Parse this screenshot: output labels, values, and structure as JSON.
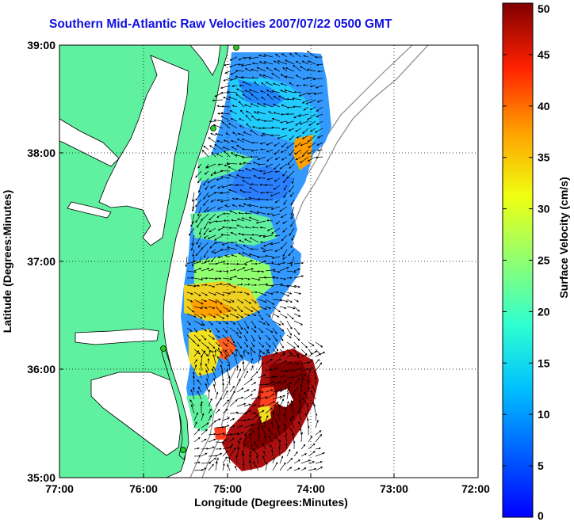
{
  "title": "Southern Mid-Atlantic Raw Velocities 2007/07/22 0500 GMT",
  "map": {
    "xlabel": "Longitude (Degrees:Minutes)",
    "ylabel": "Latitude (Degrees:Minutes)",
    "lon_ticks": [
      "77:00",
      "76:00",
      "75:00",
      "74:00",
      "73:00",
      "72:00"
    ],
    "lat_ticks": [
      "39:00",
      "38:00",
      "37:00",
      "36:00",
      "35:00"
    ],
    "lon_range": [
      -77,
      -72
    ],
    "lat_range": [
      35,
      39
    ],
    "colors": {
      "land": "#5ff0a0",
      "coast": "#000000",
      "contour": "#888888",
      "grid": "#000000",
      "station": "#22cc22",
      "arrow": "#000000"
    }
  },
  "colorbar": {
    "label": "Surface Velocity (cm/s)",
    "ticks": [
      "50",
      "45",
      "40",
      "35",
      "30",
      "25",
      "20",
      "15",
      "10",
      "5",
      "0"
    ],
    "range": [
      0,
      50
    ],
    "colormap": "jet"
  }
}
